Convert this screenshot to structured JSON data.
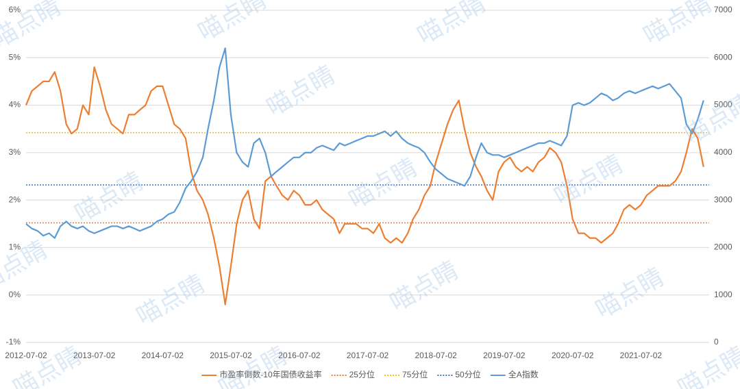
{
  "chart_data": {
    "type": "line",
    "watermark": "喵点睛",
    "x": [
      "2012-07-02",
      "2012-08-02",
      "2012-09-02",
      "2012-10-02",
      "2012-11-02",
      "2012-12-02",
      "2013-01-02",
      "2013-02-02",
      "2013-03-02",
      "2013-04-02",
      "2013-05-02",
      "2013-06-02",
      "2013-07-02",
      "2013-08-02",
      "2013-09-02",
      "2013-10-02",
      "2013-11-02",
      "2013-12-02",
      "2014-01-02",
      "2014-02-02",
      "2014-03-02",
      "2014-04-02",
      "2014-05-02",
      "2014-06-02",
      "2014-07-02",
      "2014-08-02",
      "2014-09-02",
      "2014-10-02",
      "2014-11-02",
      "2014-12-02",
      "2015-01-02",
      "2015-02-02",
      "2015-03-02",
      "2015-04-02",
      "2015-05-02",
      "2015-06-02",
      "2015-07-02",
      "2015-08-02",
      "2015-09-02",
      "2015-10-02",
      "2015-11-02",
      "2015-12-02",
      "2016-01-02",
      "2016-02-02",
      "2016-03-02",
      "2016-04-02",
      "2016-05-02",
      "2016-06-02",
      "2016-07-02",
      "2016-08-02",
      "2016-09-02",
      "2016-10-02",
      "2016-11-02",
      "2016-12-02",
      "2017-01-02",
      "2017-02-02",
      "2017-03-02",
      "2017-04-02",
      "2017-05-02",
      "2017-06-02",
      "2017-07-02",
      "2017-08-02",
      "2017-09-02",
      "2017-10-02",
      "2017-11-02",
      "2017-12-02",
      "2018-01-02",
      "2018-02-02",
      "2018-03-02",
      "2018-04-02",
      "2018-05-02",
      "2018-06-02",
      "2018-07-02",
      "2018-08-02",
      "2018-09-02",
      "2018-10-02",
      "2018-11-02",
      "2018-12-02",
      "2019-01-02",
      "2019-02-02",
      "2019-03-02",
      "2019-04-02",
      "2019-05-02",
      "2019-06-02",
      "2019-07-02",
      "2019-08-02",
      "2019-09-02",
      "2019-10-02",
      "2019-11-02",
      "2019-12-02",
      "2020-01-02",
      "2020-02-02",
      "2020-03-02",
      "2020-04-02",
      "2020-05-02",
      "2020-06-02",
      "2020-07-02",
      "2020-08-02",
      "2020-09-02",
      "2020-10-02",
      "2020-11-02",
      "2020-12-02",
      "2021-01-02",
      "2021-02-02",
      "2021-03-02",
      "2021-04-02",
      "2021-05-02",
      "2021-06-02",
      "2021-07-02",
      "2021-08-02",
      "2021-09-02",
      "2021-10-02",
      "2021-11-02",
      "2021-12-02",
      "2022-01-02",
      "2022-02-02",
      "2022-03-02",
      "2022-04-02",
      "2022-05-02",
      "2022-06-02"
    ],
    "series": [
      {
        "name": "市盈率倒数-10年国债收益率",
        "color": "#ed7d31",
        "values": [
          4.0,
          4.3,
          4.4,
          4.5,
          4.5,
          4.7,
          4.3,
          3.6,
          3.4,
          3.5,
          4.0,
          3.8,
          4.8,
          4.4,
          3.9,
          3.6,
          3.5,
          3.4,
          3.8,
          3.8,
          3.9,
          4.0,
          4.3,
          4.4,
          4.4,
          4.0,
          3.6,
          3.5,
          3.3,
          2.6,
          2.2,
          2.0,
          1.7,
          1.2,
          0.6,
          -0.2,
          0.6,
          1.5,
          2.0,
          2.2,
          1.6,
          1.4,
          2.4,
          2.5,
          2.3,
          2.1,
          2.0,
          2.2,
          2.1,
          1.9,
          1.9,
          2.0,
          1.8,
          1.7,
          1.6,
          1.3,
          1.5,
          1.5,
          1.5,
          1.4,
          1.4,
          1.3,
          1.5,
          1.2,
          1.1,
          1.2,
          1.1,
          1.3,
          1.6,
          1.8,
          2.1,
          2.3,
          2.8,
          3.2,
          3.6,
          3.9,
          4.1,
          3.5,
          3.0,
          2.7,
          2.5,
          2.2,
          2.0,
          2.6,
          2.8,
          2.9,
          2.7,
          2.6,
          2.7,
          2.6,
          2.8,
          2.9,
          3.1,
          3.0,
          2.8,
          2.3,
          1.6,
          1.3,
          1.3,
          1.2,
          1.2,
          1.1,
          1.2,
          1.3,
          1.5,
          1.8,
          1.9,
          1.8,
          1.9,
          2.1,
          2.2,
          2.3,
          2.3,
          2.3,
          2.4,
          2.6,
          3.0,
          3.5,
          3.3,
          2.7
        ]
      },
      {
        "name": "全A指数",
        "color": "#5b9bd5",
        "axis": "y2",
        "values": [
          2500,
          2400,
          2350,
          2250,
          2300,
          2200,
          2450,
          2550,
          2450,
          2400,
          2450,
          2350,
          2300,
          2350,
          2400,
          2450,
          2450,
          2400,
          2450,
          2400,
          2350,
          2400,
          2450,
          2550,
          2600,
          2700,
          2750,
          2950,
          3250,
          3400,
          3600,
          3900,
          4500,
          5100,
          5800,
          6200,
          4800,
          4000,
          3800,
          3700,
          4200,
          4300,
          4000,
          3500,
          3600,
          3700,
          3800,
          3900,
          3900,
          4000,
          4000,
          4100,
          4150,
          4100,
          4050,
          4200,
          4150,
          4200,
          4250,
          4300,
          4350,
          4350,
          4400,
          4450,
          4350,
          4450,
          4300,
          4200,
          4150,
          4100,
          4000,
          3800,
          3650,
          3550,
          3450,
          3400,
          3350,
          3300,
          3500,
          3900,
          4200,
          4000,
          3950,
          3950,
          3900,
          3950,
          4000,
          4050,
          4100,
          4150,
          4200,
          4200,
          4250,
          4200,
          4150,
          4350,
          5000,
          5050,
          5000,
          5050,
          5150,
          5250,
          5200,
          5100,
          5150,
          5250,
          5300,
          5250,
          5300,
          5350,
          5400,
          5350,
          5400,
          5450,
          5300,
          5150,
          4600,
          4400,
          4700,
          5100
        ]
      }
    ],
    "reference_lines": [
      {
        "name": "25分位",
        "color": "#ed7d31",
        "value": 1.52
      },
      {
        "name": "75分位",
        "color": "#ffc000",
        "value": 3.42
      },
      {
        "name": "50分位",
        "color": "#4472c4",
        "value": 2.32
      }
    ],
    "xlim": [
      "2012-07-02",
      "2022-07-02"
    ],
    "xticks": [
      "2012-07-02",
      "2013-07-02",
      "2014-07-02",
      "2015-07-02",
      "2016-07-02",
      "2017-07-02",
      "2018-07-02",
      "2019-07-02",
      "2020-07-02",
      "2021-07-02"
    ],
    "ylim": [
      -1,
      6
    ],
    "yticks": [
      {
        "value": -1,
        "label": "-1%"
      },
      {
        "value": 0,
        "label": "0%"
      },
      {
        "value": 1,
        "label": "1%"
      },
      {
        "value": 2,
        "label": "2%"
      },
      {
        "value": 3,
        "label": "3%"
      },
      {
        "value": 4,
        "label": "4%"
      },
      {
        "value": 5,
        "label": "5%"
      },
      {
        "value": 6,
        "label": "6%"
      }
    ],
    "y2lim": [
      0,
      7000
    ],
    "y2ticks": [
      0,
      1000,
      2000,
      3000,
      4000,
      5000,
      6000,
      7000
    ],
    "grid": true,
    "legend": "bottom"
  }
}
